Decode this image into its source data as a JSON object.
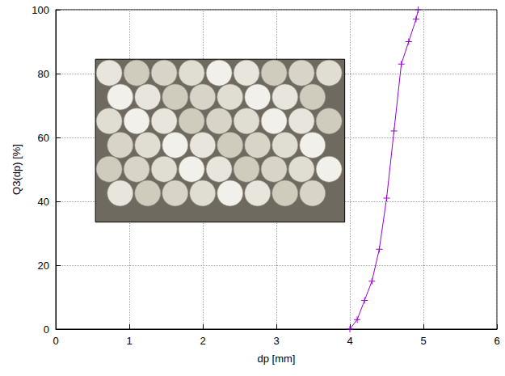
{
  "chart_data": {
    "type": "line",
    "x": [
      4.0,
      4.1,
      4.2,
      4.3,
      4.4,
      4.5,
      4.6,
      4.7,
      4.8,
      4.9,
      4.93
    ],
    "series": [
      {
        "color": "#9400d3",
        "marker": "plus",
        "line_style": "solid",
        "values": [
          0,
          3,
          9,
          15,
          25,
          41,
          62,
          83,
          90,
          97,
          100
        ]
      }
    ],
    "x_label": "dp [mm]",
    "y_label": "Q3(dp) [%]",
    "xlim": [
      0,
      6
    ],
    "xticks": [
      0,
      1,
      2,
      3,
      4,
      5,
      6
    ],
    "ylim": [
      0,
      100
    ],
    "yticks": [
      0,
      20,
      40,
      60,
      80,
      100
    ],
    "grid": true
  }
}
